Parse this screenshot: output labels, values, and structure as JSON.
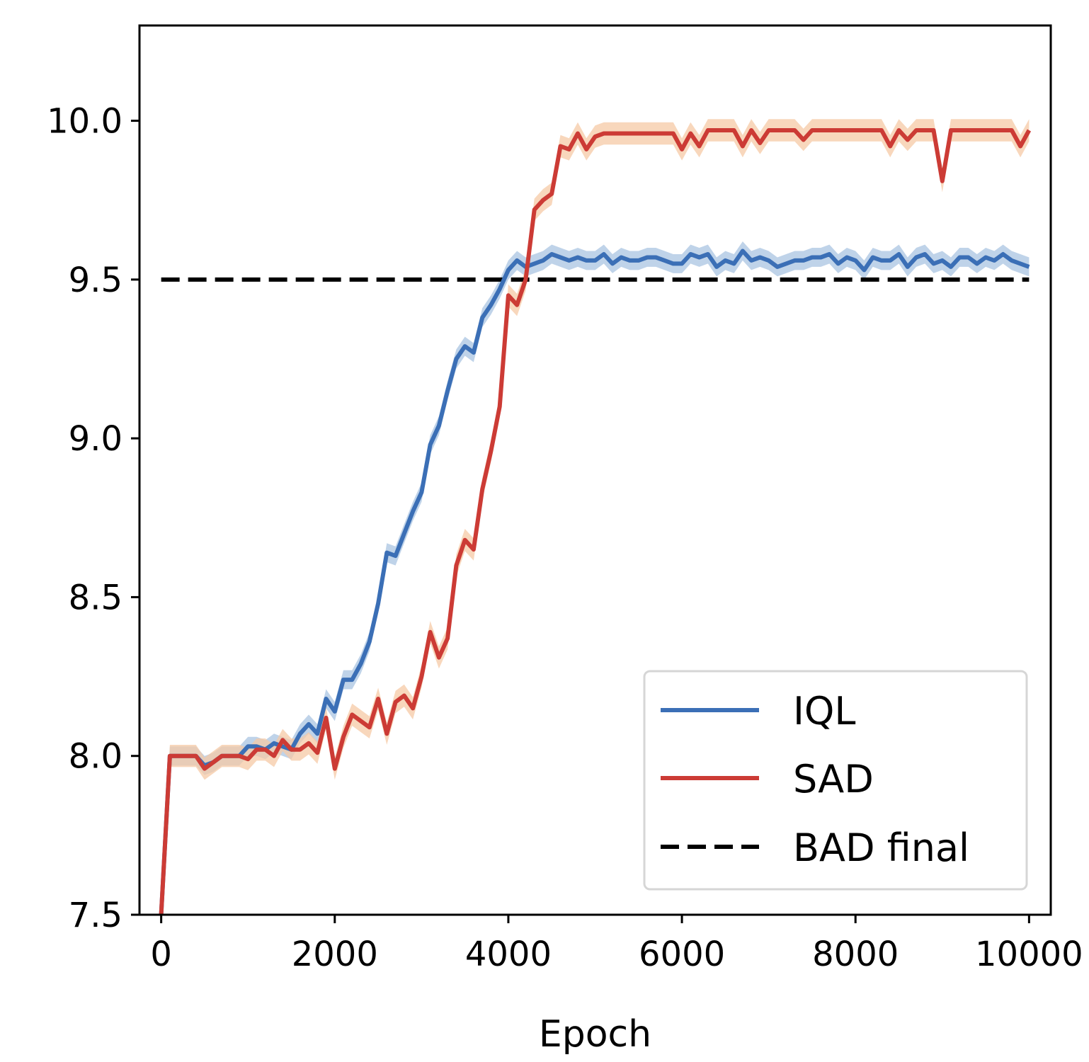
{
  "chart_data": {
    "type": "line",
    "title": "",
    "xlabel": "Epoch",
    "ylabel": "",
    "xlim": [
      -250,
      10250
    ],
    "ylim": [
      7.5,
      10.3
    ],
    "xticks": [
      0,
      2000,
      4000,
      6000,
      8000,
      10000
    ],
    "xtick_labels": [
      "0",
      "2000",
      "4000",
      "6000",
      "8000",
      "10000"
    ],
    "yticks": [
      7.5,
      8.0,
      8.5,
      9.0,
      9.5,
      10.0
    ],
    "ytick_labels": [
      "7.5",
      "8.0",
      "8.5",
      "9.0",
      "9.5",
      "10.0"
    ],
    "grid": false,
    "legend_position": "lower-right",
    "x": [
      0,
      100,
      200,
      300,
      400,
      500,
      600,
      700,
      800,
      900,
      1000,
      1100,
      1200,
      1300,
      1400,
      1500,
      1600,
      1700,
      1800,
      1900,
      2000,
      2100,
      2200,
      2300,
      2400,
      2500,
      2600,
      2700,
      2800,
      2900,
      3000,
      3100,
      3200,
      3300,
      3400,
      3500,
      3600,
      3700,
      3800,
      3900,
      4000,
      4100,
      4200,
      4300,
      4400,
      4500,
      4600,
      4700,
      4800,
      4900,
      5000,
      5100,
      5200,
      5300,
      5400,
      5500,
      5600,
      5700,
      5800,
      5900,
      6000,
      6100,
      6200,
      6300,
      6400,
      6500,
      6600,
      6700,
      6800,
      6900,
      7000,
      7100,
      7200,
      7300,
      7400,
      7500,
      7600,
      7700,
      7800,
      7900,
      8000,
      8100,
      8200,
      8300,
      8400,
      8500,
      8600,
      8700,
      8800,
      8900,
      9000,
      9100,
      9200,
      9300,
      9400,
      9500,
      9600,
      9700,
      9800,
      9900,
      10000
    ],
    "series": [
      {
        "name": "IQL",
        "color": "#3b6fb6",
        "band_color": "#a9c4e2",
        "band_width": 0.03,
        "values": [
          7.5,
          8.0,
          8.0,
          8.0,
          8.0,
          7.97,
          7.98,
          8.0,
          8.0,
          8.0,
          8.03,
          8.03,
          8.02,
          8.04,
          8.03,
          8.02,
          8.07,
          8.1,
          8.07,
          8.18,
          8.14,
          8.24,
          8.24,
          8.29,
          8.36,
          8.48,
          8.64,
          8.63,
          8.7,
          8.77,
          8.83,
          8.98,
          9.04,
          9.15,
          9.25,
          9.29,
          9.27,
          9.38,
          9.42,
          9.47,
          9.53,
          9.56,
          9.54,
          9.55,
          9.56,
          9.58,
          9.57,
          9.56,
          9.57,
          9.56,
          9.56,
          9.58,
          9.55,
          9.57,
          9.56,
          9.56,
          9.57,
          9.57,
          9.56,
          9.55,
          9.55,
          9.58,
          9.57,
          9.58,
          9.54,
          9.56,
          9.55,
          9.59,
          9.56,
          9.57,
          9.56,
          9.54,
          9.55,
          9.56,
          9.56,
          9.57,
          9.57,
          9.58,
          9.55,
          9.57,
          9.56,
          9.53,
          9.57,
          9.56,
          9.56,
          9.58,
          9.54,
          9.57,
          9.58,
          9.55,
          9.56,
          9.54,
          9.57,
          9.57,
          9.55,
          9.57,
          9.56,
          9.58,
          9.56,
          9.55,
          9.54
        ]
      },
      {
        "name": "SAD",
        "color": "#cc3b35",
        "band_color": "#f5c9a5",
        "band_width": 0.035,
        "values": [
          7.5,
          8.0,
          8.0,
          8.0,
          8.0,
          7.96,
          7.98,
          8.0,
          8.0,
          8.0,
          7.99,
          8.02,
          8.02,
          8.0,
          8.05,
          8.02,
          8.02,
          8.04,
          8.01,
          8.12,
          7.96,
          8.06,
          8.13,
          8.11,
          8.09,
          8.18,
          8.07,
          8.17,
          8.19,
          8.15,
          8.25,
          8.39,
          8.31,
          8.37,
          8.6,
          8.68,
          8.65,
          8.84,
          8.96,
          9.1,
          9.45,
          9.42,
          9.5,
          9.72,
          9.75,
          9.77,
          9.92,
          9.91,
          9.96,
          9.91,
          9.95,
          9.96,
          9.96,
          9.96,
          9.96,
          9.96,
          9.96,
          9.96,
          9.96,
          9.96,
          9.91,
          9.96,
          9.92,
          9.97,
          9.97,
          9.97,
          9.97,
          9.92,
          9.97,
          9.93,
          9.97,
          9.97,
          9.97,
          9.97,
          9.94,
          9.97,
          9.97,
          9.97,
          9.97,
          9.97,
          9.97,
          9.97,
          9.97,
          9.97,
          9.92,
          9.97,
          9.94,
          9.97,
          9.97,
          9.97,
          9.81,
          9.97,
          9.97,
          9.97,
          9.97,
          9.97,
          9.97,
          9.97,
          9.97,
          9.92,
          9.97
        ]
      }
    ],
    "reference_lines": [
      {
        "name": "BAD final",
        "y": 9.5,
        "x_range": [
          0,
          10000
        ],
        "color": "#000000",
        "style": "dashed"
      }
    ],
    "legend": [
      "IQL",
      "SAD",
      "BAD final"
    ]
  }
}
